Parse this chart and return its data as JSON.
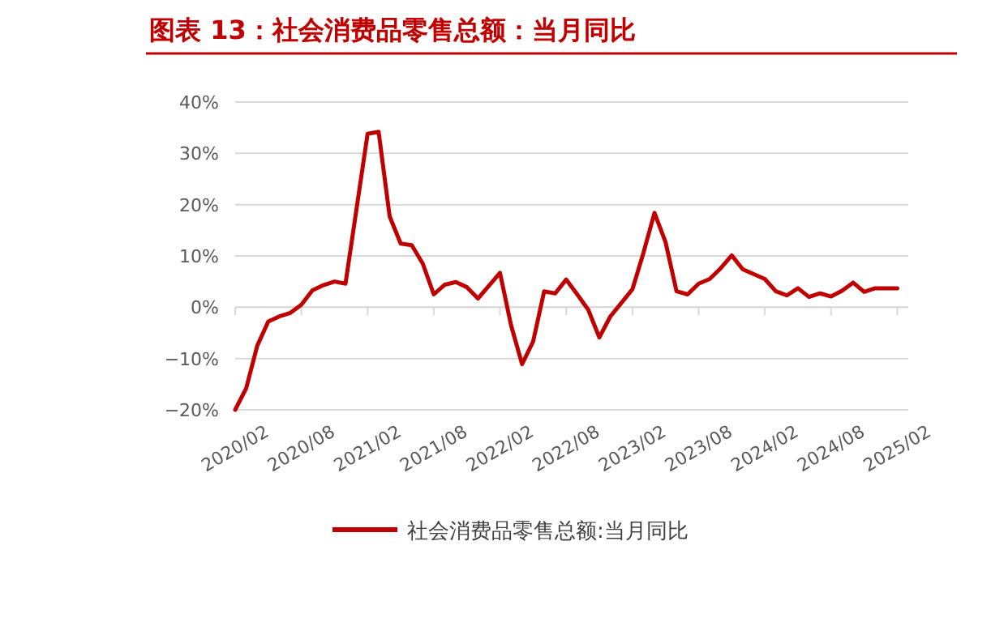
{
  "chart_data": {
    "type": "line",
    "title": "图表 13：社会消费品零售总额：当月同比",
    "x": [
      "2020-02",
      "2020-03",
      "2020-04",
      "2020-05",
      "2020-06",
      "2020-07",
      "2020-08",
      "2020-09",
      "2020-10",
      "2020-11",
      "2020-12",
      "2021-02",
      "2021-03",
      "2021-04",
      "2021-05",
      "2021-06",
      "2021-07",
      "2021-08",
      "2021-09",
      "2021-10",
      "2021-11",
      "2021-12",
      "2022-02",
      "2022-03",
      "2022-04",
      "2022-05",
      "2022-06",
      "2022-07",
      "2022-08",
      "2022-09",
      "2022-10",
      "2022-11",
      "2022-12",
      "2023-02",
      "2023-03",
      "2023-04",
      "2023-05",
      "2023-06",
      "2023-07",
      "2023-08",
      "2023-09",
      "2023-10",
      "2023-11",
      "2023-12",
      "2024-02",
      "2024-03",
      "2024-04",
      "2024-05",
      "2024-06",
      "2024-07",
      "2024-08",
      "2024-09",
      "2024-10",
      "2024-11",
      "2024-12",
      "2025-02"
    ],
    "series": [
      {
        "name": "社会消费品零售总额:当月同比",
        "color": "#c00000",
        "values": [
          -20,
          -15.8,
          -7.5,
          -2.8,
          -1.8,
          -1.1,
          0.5,
          3.3,
          4.3,
          5.0,
          4.6,
          33.8,
          34.2,
          17.7,
          12.4,
          12.1,
          8.5,
          2.5,
          4.4,
          4.9,
          3.9,
          1.7,
          6.7,
          -3.5,
          -11.1,
          -6.7,
          3.1,
          2.7,
          5.4,
          2.5,
          -0.5,
          -5.9,
          -1.8,
          3.5,
          10.6,
          18.4,
          12.7,
          3.1,
          2.5,
          4.6,
          5.5,
          7.6,
          10.1,
          7.4,
          5.5,
          3.1,
          2.3,
          3.7,
          2.0,
          2.7,
          2.1,
          3.2,
          4.8,
          3.0,
          3.7,
          3.7
        ]
      }
    ],
    "xlim": [
      "2020-02",
      "2025-03"
    ],
    "xticks": [
      {
        "value": "2020-02",
        "label": "2020/02"
      },
      {
        "value": "2020-08",
        "label": "2020/08"
      },
      {
        "value": "2021-02",
        "label": "2021/02"
      },
      {
        "value": "2021-08",
        "label": "2021/08"
      },
      {
        "value": "2022-02",
        "label": "2022/02"
      },
      {
        "value": "2022-08",
        "label": "2022/08"
      },
      {
        "value": "2023-02",
        "label": "2023/02"
      },
      {
        "value": "2023-08",
        "label": "2023/08"
      },
      {
        "value": "2024-02",
        "label": "2024/02"
      },
      {
        "value": "2024-08",
        "label": "2024/08"
      },
      {
        "value": "2025-02",
        "label": "2025/02"
      }
    ],
    "ylim": [
      -20,
      40
    ],
    "yticks": [
      {
        "value": -20,
        "label": "−20%"
      },
      {
        "value": -10,
        "label": "−10%"
      },
      {
        "value": 0,
        "label": "0%"
      },
      {
        "value": 10,
        "label": "10%"
      },
      {
        "value": 20,
        "label": "20%"
      },
      {
        "value": 30,
        "label": "30%"
      },
      {
        "value": 40,
        "label": "40%"
      }
    ],
    "grid": "y",
    "legend": "bottom",
    "marker": "none",
    "line_style": "solid"
  }
}
